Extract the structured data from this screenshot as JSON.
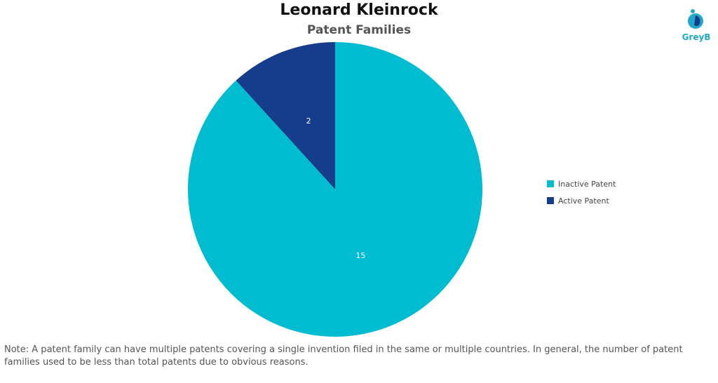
{
  "chart_data": {
    "type": "pie",
    "title": "Leonard Kleinrock",
    "subtitle": "Patent Families",
    "slices": [
      {
        "label": "Inactive Patent",
        "value": 15,
        "color": "#00BCD0"
      },
      {
        "label": "Active Patent",
        "value": 2,
        "color": "#163D8C"
      }
    ],
    "legend_position": "right"
  },
  "logo": {
    "text": "GreyB",
    "icon": "greyb-logo-icon"
  },
  "note": "Note: A patent family can have multiple patents covering a single invention filed in the same or multiple countries. In general, the number of patent families used to be less than total patents due to obvious reasons."
}
